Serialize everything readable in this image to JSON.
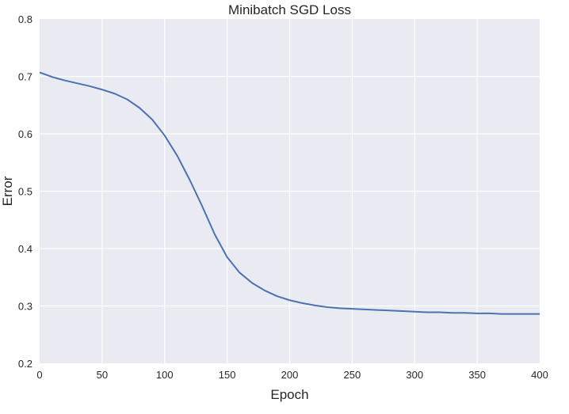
{
  "chart_data": {
    "type": "line",
    "title": "Minibatch SGD Loss",
    "xlabel": "Epoch",
    "ylabel": "Error",
    "xlim": [
      0,
      400
    ],
    "ylim": [
      0.2,
      0.8
    ],
    "xticks": [
      0,
      50,
      100,
      150,
      200,
      250,
      300,
      350,
      400
    ],
    "yticks": [
      0.2,
      0.3,
      0.4,
      0.5,
      0.6,
      0.7,
      0.8
    ],
    "ytick_labels": [
      "0.2",
      "0.3",
      "0.4",
      "0.5",
      "0.6",
      "0.7",
      "0.8"
    ],
    "grid": true,
    "background": "#EAEAF2",
    "series": [
      {
        "color": "#4C72B0",
        "x": [
          0,
          10,
          20,
          30,
          40,
          50,
          60,
          70,
          80,
          90,
          100,
          110,
          120,
          130,
          140,
          150,
          160,
          170,
          180,
          190,
          200,
          210,
          220,
          230,
          240,
          250,
          260,
          270,
          280,
          290,
          300,
          310,
          320,
          330,
          340,
          350,
          360,
          370,
          380,
          390,
          400
        ],
        "y": [
          0.707,
          0.699,
          0.693,
          0.688,
          0.683,
          0.677,
          0.67,
          0.66,
          0.645,
          0.625,
          0.597,
          0.562,
          0.52,
          0.474,
          0.425,
          0.385,
          0.358,
          0.34,
          0.327,
          0.317,
          0.31,
          0.305,
          0.301,
          0.298,
          0.296,
          0.295,
          0.294,
          0.293,
          0.292,
          0.291,
          0.29,
          0.289,
          0.289,
          0.288,
          0.288,
          0.287,
          0.287,
          0.286,
          0.286,
          0.286,
          0.286
        ]
      }
    ]
  }
}
